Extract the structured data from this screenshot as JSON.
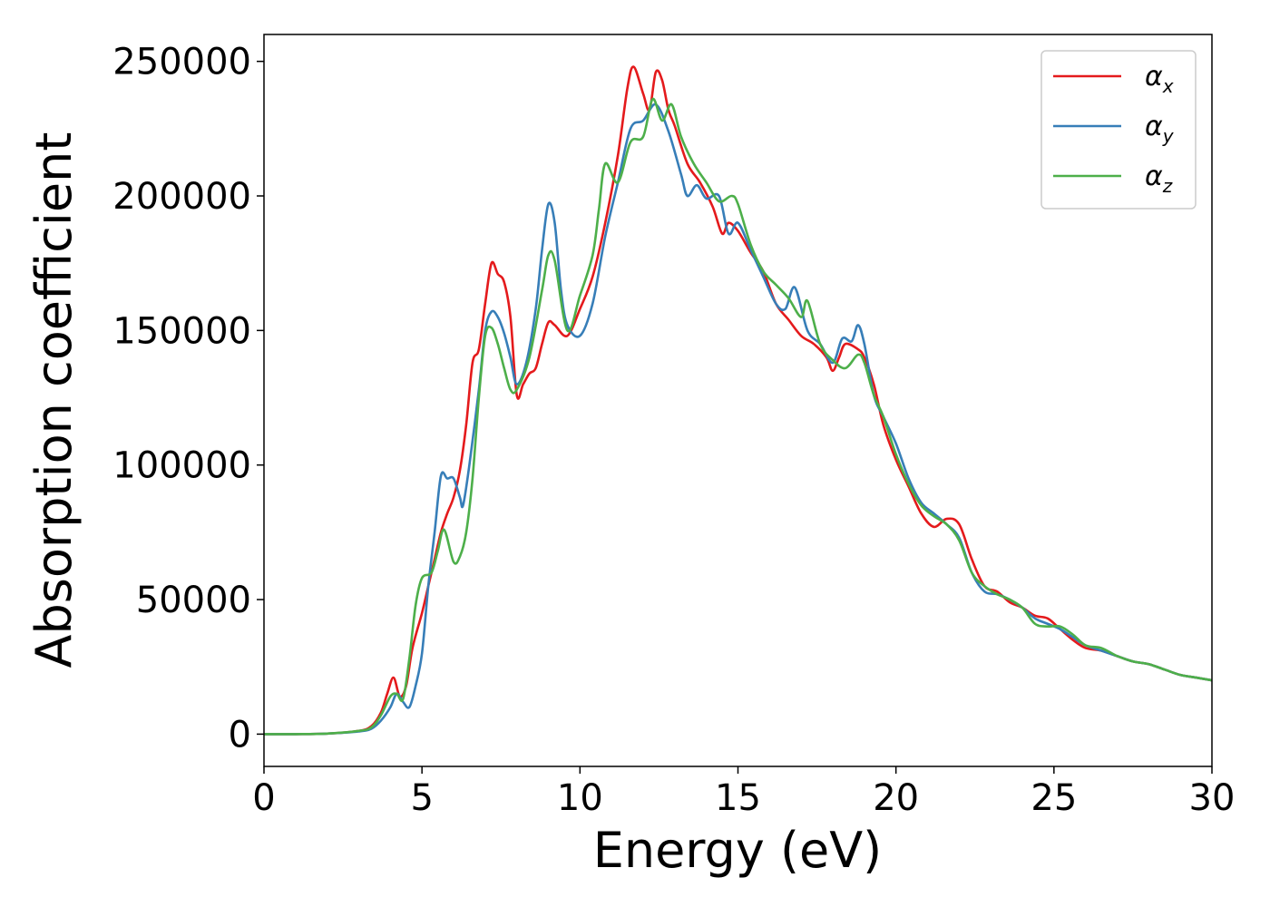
{
  "chart_data": {
    "type": "line",
    "title": "",
    "xlabel": "Energy (eV)",
    "ylabel": "Absorption coefficient",
    "xlim": [
      0,
      30
    ],
    "ylim": [
      -12000,
      260000
    ],
    "xticks": [
      0,
      5,
      10,
      15,
      20,
      25,
      30
    ],
    "yticks": [
      0,
      50000,
      100000,
      150000,
      200000,
      250000
    ],
    "grid": false,
    "legend": "top-right",
    "series": [
      {
        "name": "α",
        "subscript": "x",
        "color": "#e41a1c",
        "points": [
          [
            0,
            0
          ],
          [
            1,
            0
          ],
          [
            2,
            200
          ],
          [
            3,
            1200
          ],
          [
            3.4,
            3000
          ],
          [
            3.7,
            8000
          ],
          [
            3.9,
            15000
          ],
          [
            4.1,
            21000
          ],
          [
            4.3,
            14000
          ],
          [
            4.5,
            18000
          ],
          [
            4.7,
            32000
          ],
          [
            5,
            45000
          ],
          [
            5.2,
            55000
          ],
          [
            5.4,
            65000
          ],
          [
            5.6,
            75000
          ],
          [
            5.8,
            82000
          ],
          [
            6,
            88000
          ],
          [
            6.2,
            98000
          ],
          [
            6.4,
            115000
          ],
          [
            6.6,
            138000
          ],
          [
            6.8,
            143000
          ],
          [
            7,
            160000
          ],
          [
            7.2,
            175000
          ],
          [
            7.4,
            171000
          ],
          [
            7.6,
            168000
          ],
          [
            7.8,
            155000
          ],
          [
            8,
            126000
          ],
          [
            8.2,
            130000
          ],
          [
            8.4,
            134000
          ],
          [
            8.6,
            136000
          ],
          [
            8.8,
            145000
          ],
          [
            9,
            153000
          ],
          [
            9.2,
            152000
          ],
          [
            9.6,
            148000
          ],
          [
            10,
            158000
          ],
          [
            10.4,
            170000
          ],
          [
            10.8,
            190000
          ],
          [
            11.2,
            215000
          ],
          [
            11.5,
            240000
          ],
          [
            11.7,
            248000
          ],
          [
            12,
            238000
          ],
          [
            12.2,
            232000
          ],
          [
            12.4,
            246000
          ],
          [
            12.6,
            243000
          ],
          [
            12.8,
            232000
          ],
          [
            13,
            226000
          ],
          [
            13.4,
            212000
          ],
          [
            13.8,
            205000
          ],
          [
            14.2,
            196000
          ],
          [
            14.5,
            186000
          ],
          [
            14.7,
            190000
          ],
          [
            15,
            187000
          ],
          [
            15.4,
            179000
          ],
          [
            15.8,
            172000
          ],
          [
            16.2,
            160000
          ],
          [
            16.6,
            154000
          ],
          [
            17,
            148000
          ],
          [
            17.4,
            145000
          ],
          [
            17.8,
            140000
          ],
          [
            18,
            135000
          ],
          [
            18.2,
            140000
          ],
          [
            18.4,
            145000
          ],
          [
            18.8,
            143000
          ],
          [
            19,
            140000
          ],
          [
            19.3,
            130000
          ],
          [
            19.6,
            115000
          ],
          [
            20,
            102000
          ],
          [
            20.4,
            92000
          ],
          [
            20.8,
            82000
          ],
          [
            21.2,
            77000
          ],
          [
            21.6,
            80000
          ],
          [
            22,
            78000
          ],
          [
            22.4,
            65000
          ],
          [
            22.8,
            55000
          ],
          [
            23.2,
            53000
          ],
          [
            23.6,
            49000
          ],
          [
            24,
            47000
          ],
          [
            24.4,
            44000
          ],
          [
            24.8,
            43000
          ],
          [
            25.2,
            39000
          ],
          [
            25.6,
            35000
          ],
          [
            26,
            32000
          ],
          [
            26.5,
            31000
          ],
          [
            27,
            29000
          ],
          [
            27.5,
            27000
          ],
          [
            28,
            26000
          ],
          [
            28.5,
            24000
          ],
          [
            29,
            22000
          ],
          [
            29.5,
            21000
          ],
          [
            30,
            20000
          ]
        ]
      },
      {
        "name": "α",
        "subscript": "y",
        "color": "#377eb8",
        "points": [
          [
            0,
            0
          ],
          [
            1,
            0
          ],
          [
            2,
            200
          ],
          [
            3,
            1000
          ],
          [
            3.4,
            2000
          ],
          [
            3.7,
            5000
          ],
          [
            4,
            10000
          ],
          [
            4.2,
            15000
          ],
          [
            4.4,
            12000
          ],
          [
            4.6,
            10000
          ],
          [
            4.8,
            18000
          ],
          [
            5,
            30000
          ],
          [
            5.2,
            55000
          ],
          [
            5.4,
            75000
          ],
          [
            5.6,
            96000
          ],
          [
            5.8,
            95000
          ],
          [
            6,
            95000
          ],
          [
            6.2,
            88000
          ],
          [
            6.3,
            85000
          ],
          [
            6.5,
            100000
          ],
          [
            6.8,
            128000
          ],
          [
            7,
            150000
          ],
          [
            7.2,
            157000
          ],
          [
            7.4,
            155000
          ],
          [
            7.6,
            149000
          ],
          [
            7.8,
            140000
          ],
          [
            8,
            130000
          ],
          [
            8.3,
            138000
          ],
          [
            8.6,
            158000
          ],
          [
            8.8,
            180000
          ],
          [
            9,
            197000
          ],
          [
            9.2,
            190000
          ],
          [
            9.4,
            165000
          ],
          [
            9.6,
            152000
          ],
          [
            10,
            148000
          ],
          [
            10.4,
            160000
          ],
          [
            10.8,
            185000
          ],
          [
            11.2,
            205000
          ],
          [
            11.6,
            225000
          ],
          [
            12,
            228000
          ],
          [
            12.4,
            234000
          ],
          [
            12.8,
            224000
          ],
          [
            13.2,
            208000
          ],
          [
            13.4,
            200000
          ],
          [
            13.7,
            204000
          ],
          [
            14,
            199000
          ],
          [
            14.4,
            200000
          ],
          [
            14.7,
            186000
          ],
          [
            15,
            190000
          ],
          [
            15.4,
            180000
          ],
          [
            15.8,
            170000
          ],
          [
            16.2,
            160000
          ],
          [
            16.5,
            158000
          ],
          [
            16.8,
            166000
          ],
          [
            17.2,
            150000
          ],
          [
            17.6,
            145000
          ],
          [
            18,
            138000
          ],
          [
            18.3,
            147000
          ],
          [
            18.6,
            146000
          ],
          [
            18.8,
            152000
          ],
          [
            19,
            145000
          ],
          [
            19.3,
            126000
          ],
          [
            19.6,
            118000
          ],
          [
            20,
            108000
          ],
          [
            20.4,
            95000
          ],
          [
            20.8,
            86000
          ],
          [
            21.2,
            82000
          ],
          [
            21.6,
            78000
          ],
          [
            22,
            73000
          ],
          [
            22.4,
            60000
          ],
          [
            22.8,
            53000
          ],
          [
            23.2,
            52000
          ],
          [
            23.6,
            50000
          ],
          [
            24,
            47000
          ],
          [
            24.4,
            43000
          ],
          [
            24.8,
            41000
          ],
          [
            25.2,
            39000
          ],
          [
            25.6,
            36000
          ],
          [
            26,
            33000
          ],
          [
            26.5,
            31000
          ],
          [
            27,
            29000
          ],
          [
            27.5,
            27000
          ],
          [
            28,
            26000
          ],
          [
            28.5,
            24000
          ],
          [
            29,
            22000
          ],
          [
            29.5,
            21000
          ],
          [
            30,
            20000
          ]
        ]
      },
      {
        "name": "α",
        "subscript": "z",
        "color": "#4daf4a",
        "points": [
          [
            0,
            0
          ],
          [
            1,
            0
          ],
          [
            2,
            200
          ],
          [
            3,
            1200
          ],
          [
            3.4,
            2500
          ],
          [
            3.7,
            7000
          ],
          [
            4,
            14000
          ],
          [
            4.2,
            15000
          ],
          [
            4.4,
            13000
          ],
          [
            4.6,
            28000
          ],
          [
            4.8,
            48000
          ],
          [
            5,
            58000
          ],
          [
            5.3,
            60000
          ],
          [
            5.5,
            68000
          ],
          [
            5.7,
            76000
          ],
          [
            6,
            64000
          ],
          [
            6.2,
            66000
          ],
          [
            6.4,
            75000
          ],
          [
            6.6,
            95000
          ],
          [
            6.8,
            125000
          ],
          [
            7,
            148000
          ],
          [
            7.2,
            151000
          ],
          [
            7.4,
            145000
          ],
          [
            7.6,
            136000
          ],
          [
            7.8,
            128000
          ],
          [
            8,
            128000
          ],
          [
            8.4,
            140000
          ],
          [
            8.8,
            165000
          ],
          [
            9,
            178000
          ],
          [
            9.2,
            176000
          ],
          [
            9.6,
            150000
          ],
          [
            10,
            163000
          ],
          [
            10.4,
            178000
          ],
          [
            10.6,
            195000
          ],
          [
            10.8,
            212000
          ],
          [
            11.2,
            205000
          ],
          [
            11.6,
            220000
          ],
          [
            12,
            222000
          ],
          [
            12.3,
            236000
          ],
          [
            12.6,
            228000
          ],
          [
            12.9,
            234000
          ],
          [
            13.2,
            222000
          ],
          [
            13.6,
            212000
          ],
          [
            14,
            205000
          ],
          [
            14.4,
            198000
          ],
          [
            14.8,
            200000
          ],
          [
            15,
            197000
          ],
          [
            15.4,
            182000
          ],
          [
            15.8,
            172000
          ],
          [
            16.2,
            167000
          ],
          [
            16.6,
            162000
          ],
          [
            17,
            155000
          ],
          [
            17.2,
            161000
          ],
          [
            17.6,
            145000
          ],
          [
            18,
            139000
          ],
          [
            18.4,
            136000
          ],
          [
            18.8,
            141000
          ],
          [
            19,
            138000
          ],
          [
            19.3,
            126000
          ],
          [
            19.6,
            118000
          ],
          [
            20,
            104000
          ],
          [
            20.4,
            93000
          ],
          [
            20.8,
            85000
          ],
          [
            21.2,
            81000
          ],
          [
            21.6,
            78000
          ],
          [
            22,
            72000
          ],
          [
            22.4,
            60000
          ],
          [
            22.8,
            55000
          ],
          [
            23.2,
            52000
          ],
          [
            23.6,
            50000
          ],
          [
            24,
            47000
          ],
          [
            24.4,
            41000
          ],
          [
            24.8,
            40000
          ],
          [
            25.2,
            40000
          ],
          [
            25.6,
            37000
          ],
          [
            26,
            33000
          ],
          [
            26.5,
            32000
          ],
          [
            27,
            29000
          ],
          [
            27.5,
            27000
          ],
          [
            28,
            26000
          ],
          [
            28.5,
            24000
          ],
          [
            29,
            22000
          ],
          [
            29.5,
            21000
          ],
          [
            30,
            20000
          ]
        ]
      }
    ]
  }
}
